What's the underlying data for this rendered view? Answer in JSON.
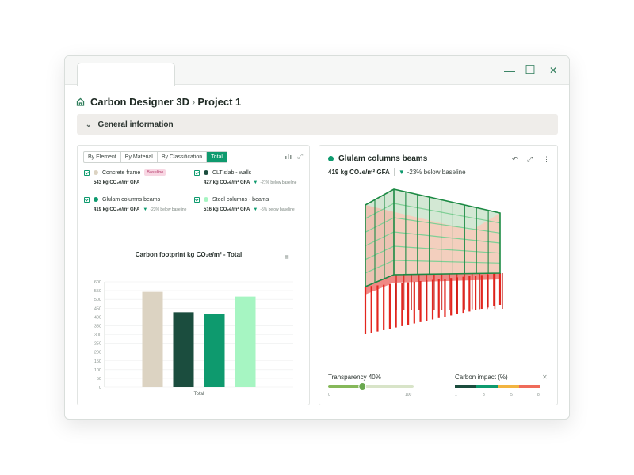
{
  "window": {
    "controls": {
      "minimize": "—",
      "maximize": "☐",
      "close": "✕"
    }
  },
  "breadcrumb": {
    "app": "Carbon Designer 3D",
    "separator": "›",
    "project": "Project 1"
  },
  "section": {
    "label": "General information"
  },
  "left_panel": {
    "tabs": [
      "By Element",
      "By Material",
      "By Classification",
      "Total"
    ],
    "active_tab": "Total",
    "items": [
      {
        "name": "Concrete frame",
        "color": "#dcd3c2",
        "value": "543 kg CO₂e/m² GFA",
        "badge": "Baseline",
        "delta": ""
      },
      {
        "name": "CLT slab - walls",
        "color": "#1b4d3e",
        "value": "427 kg CO₂e/m² GFA",
        "badge": "",
        "delta": "-21% below baseline"
      },
      {
        "name": "Glulam columns beams",
        "color": "#0e9a6e",
        "value": "419 kg CO₂e/m² GFA",
        "badge": "",
        "delta": "-23% below baseline"
      },
      {
        "name": "Steel columns - beams",
        "color": "#a6f5c2",
        "value": "516 kg CO₂e/m² GFA",
        "badge": "",
        "delta": "-5% below baseline"
      }
    ]
  },
  "chart_data": {
    "type": "bar",
    "title": "Carbon footprint kg CO₂e/m² - Total",
    "categories": [
      "Total"
    ],
    "series": [
      {
        "name": "Concrete frame",
        "values": [
          543
        ],
        "color": "#dcd3c2"
      },
      {
        "name": "CLT slab - walls",
        "values": [
          427
        ],
        "color": "#1b4d3e"
      },
      {
        "name": "Glulam columns beams",
        "values": [
          419
        ],
        "color": "#0e9a6e"
      },
      {
        "name": "Steel columns - beams",
        "values": [
          516
        ],
        "color": "#a6f5c2"
      }
    ],
    "yticks": [
      0,
      50,
      100,
      150,
      200,
      250,
      300,
      350,
      400,
      450,
      500,
      550,
      600
    ],
    "ylim": [
      0,
      600
    ],
    "xlabel": "Total",
    "ylabel": "",
    "grid": true
  },
  "right_panel": {
    "title": "Glulam columns beams",
    "value": "419 kg CO₂e/m² GFA",
    "delta": "-23% below baseline",
    "transparency": {
      "label": "Transparency 40%",
      "value": 40,
      "min_label": "0",
      "max_label": "100"
    },
    "carbon_impact": {
      "label": "Carbon impact (%)",
      "ticks": [
        "1",
        "3",
        "5",
        "8"
      ]
    }
  }
}
